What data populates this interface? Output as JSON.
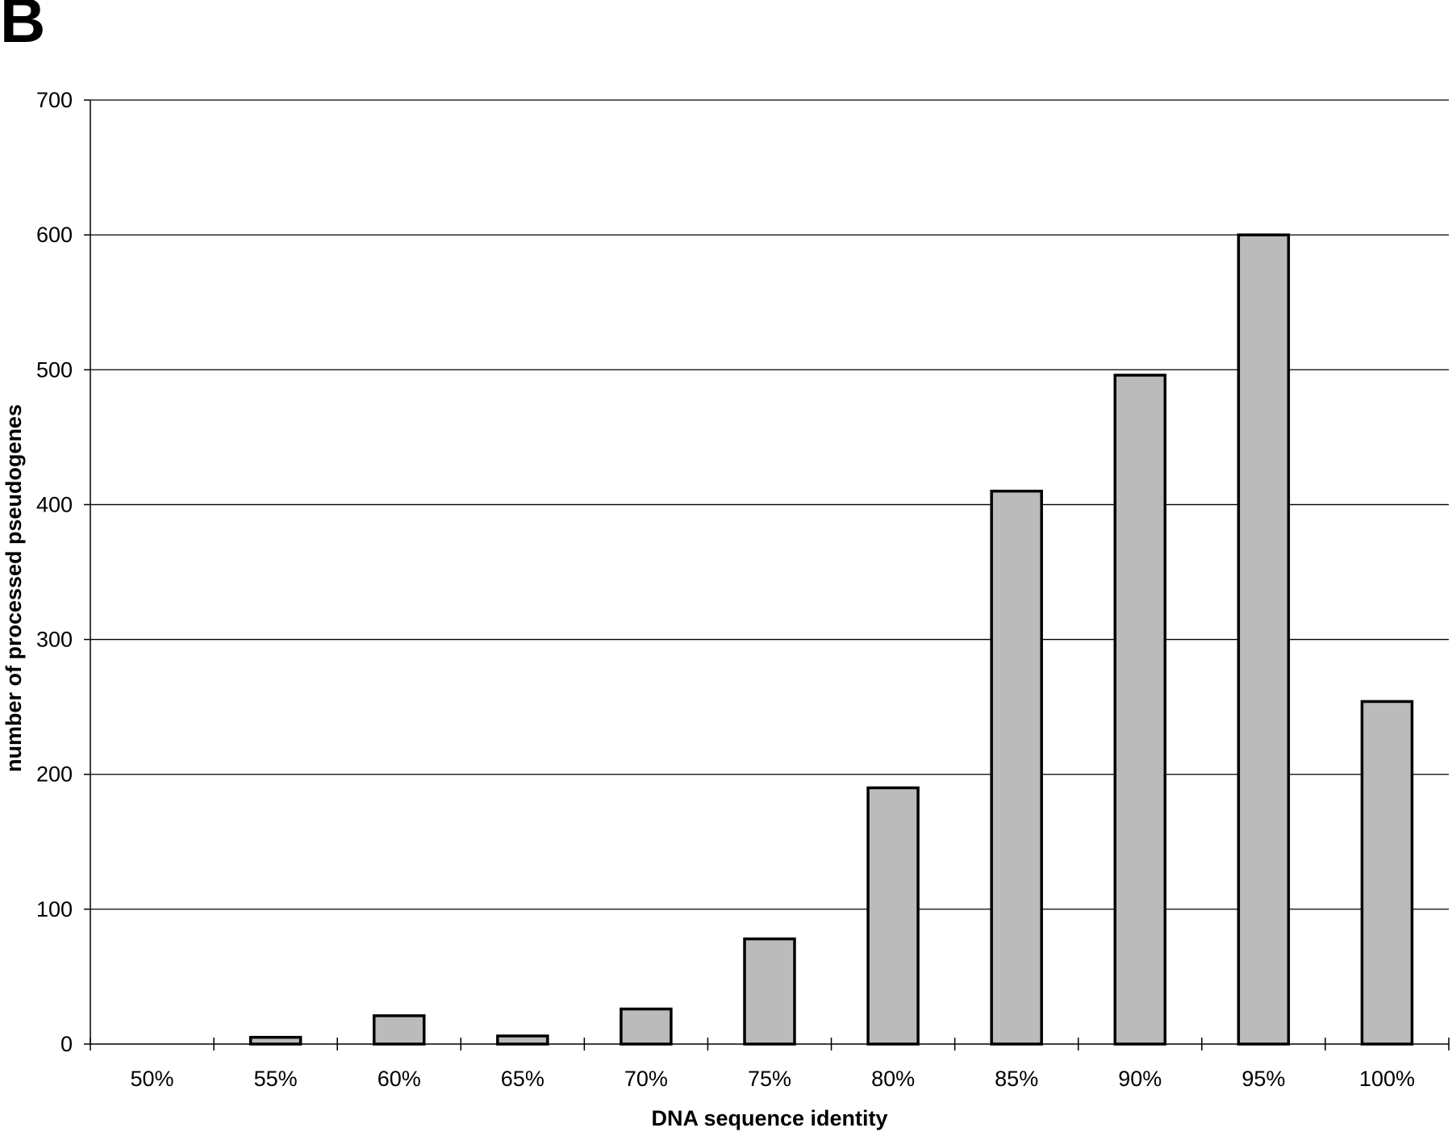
{
  "panel_label": "B",
  "chart_data": {
    "type": "bar",
    "categories": [
      "50%",
      "55%",
      "60%",
      "65%",
      "70%",
      "75%",
      "80%",
      "85%",
      "90%",
      "95%",
      "100%"
    ],
    "values": [
      0,
      5,
      21,
      6,
      26,
      78,
      190,
      410,
      496,
      600,
      254
    ],
    "title": "",
    "xlabel": "DNA sequence identity",
    "ylabel": "number of processed pseudogenes",
    "ylim": [
      0,
      700
    ],
    "yticks": [
      0,
      100,
      200,
      300,
      400,
      500,
      600,
      700
    ],
    "grid": true,
    "legend": "none",
    "colors": {
      "bar_fill": "#bbbbbb",
      "bar_stroke": "#000000",
      "grid": "#000000",
      "axis": "#000000"
    }
  }
}
